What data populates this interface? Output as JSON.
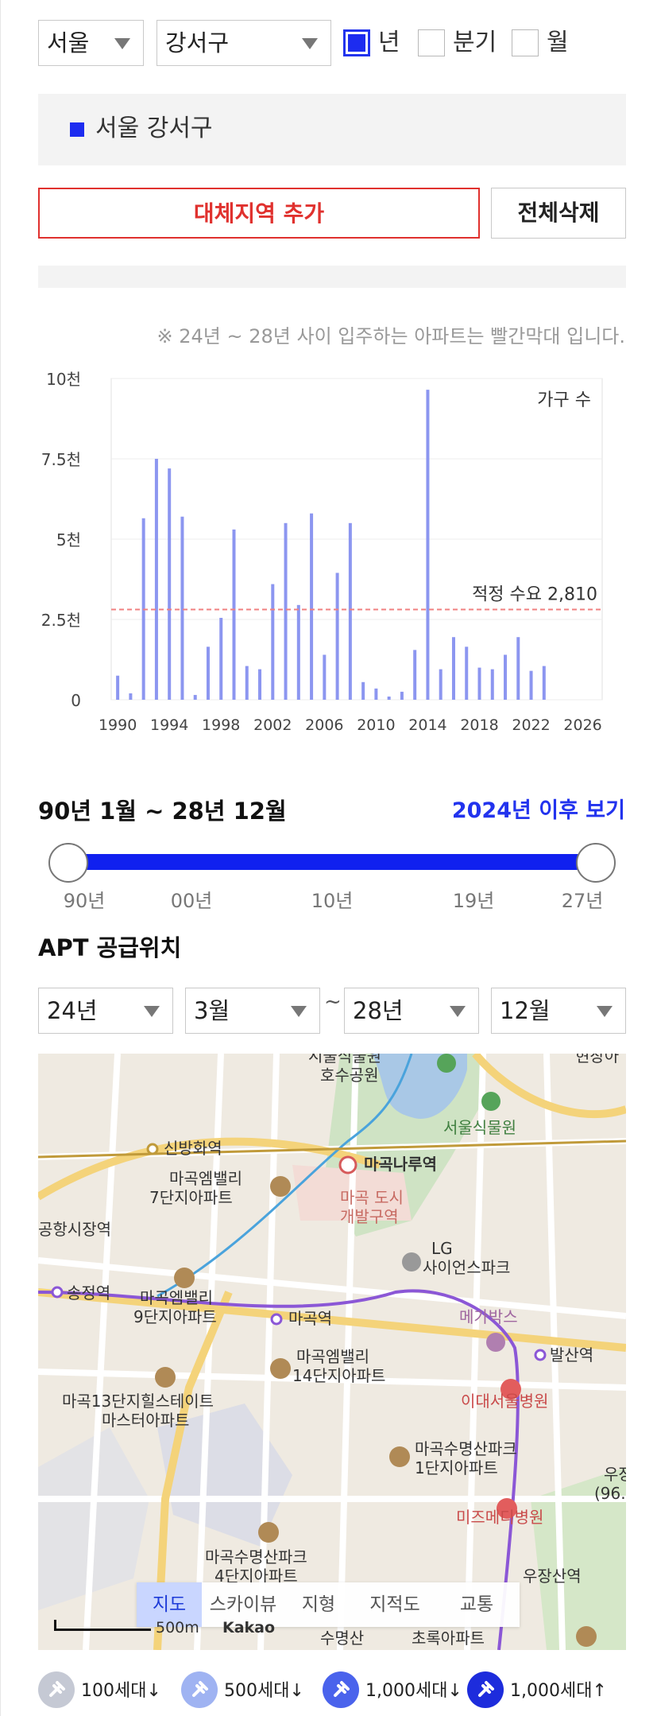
{
  "filters": {
    "city": "서울",
    "district": "강서구",
    "period_options": [
      {
        "label": "년",
        "checked": true
      },
      {
        "label": "분기",
        "checked": false
      },
      {
        "label": "월",
        "checked": false
      }
    ]
  },
  "region": {
    "label": "서울 강서구",
    "color": "#1d2cf0"
  },
  "buttons": {
    "add_region": "대체지역 추가",
    "delete_all": "전체삭제"
  },
  "note": "※ 24년 ~ 28년 사이 입주하는 아파트는 빨간막대 입니다.",
  "chart_data": {
    "type": "bar",
    "legend": "가구 수",
    "y_ticks": [
      "10천",
      "7.5천",
      "5천",
      "2.5천",
      "0"
    ],
    "x_ticks": [
      "1990",
      "1994",
      "1998",
      "2002",
      "2006",
      "2010",
      "2014",
      "2018",
      "2022",
      "2026"
    ],
    "ylim": [
      0,
      10000
    ],
    "xlim": [
      1989.5,
      2027.5
    ],
    "bar_color": "#8c96f0",
    "reference_line": {
      "label": "적정 수요 2,810",
      "value": 2810,
      "color": "#f08080"
    },
    "categories": [
      1990,
      1991,
      1992,
      1993,
      1994,
      1995,
      1996,
      1997,
      1998,
      1999,
      2000,
      2001,
      2002,
      2003,
      2004,
      2005,
      2006,
      2007,
      2008,
      2009,
      2010,
      2011,
      2012,
      2013,
      2014,
      2015,
      2016,
      2017,
      2018,
      2019,
      2020,
      2021,
      2022,
      2023
    ],
    "values": [
      750,
      200,
      5650,
      7500,
      7200,
      5700,
      150,
      1650,
      2550,
      5300,
      1050,
      950,
      3600,
      5500,
      2950,
      5800,
      1400,
      3950,
      5500,
      550,
      350,
      100,
      250,
      1550,
      9650,
      950,
      1950,
      1650,
      1000,
      950,
      1400,
      1950,
      900,
      1050
    ]
  },
  "period": {
    "range_label": "90년 1월 ~ 28년 12월",
    "after_link": "2024년 이후 보기"
  },
  "slider": {
    "ticks": [
      "90년",
      "00년",
      "10년",
      "19년",
      "27년"
    ],
    "min_fraction": 0,
    "max_fraction": 1,
    "track_color": "#1020ef"
  },
  "supply": {
    "title": "APT 공급위치",
    "from_year": "24년",
    "from_month": "3월",
    "separator": "~",
    "to_year": "28년",
    "to_month": "12월"
  },
  "map": {
    "labels": {
      "l1": "시울식물원",
      "l2": "호수공원",
      "l3": "서울식물원",
      "l4": "신방화역",
      "l5": "마곡나루역",
      "l6": "마곡엠밸리",
      "l7": "7단지아파트",
      "l8": "마곡 도시",
      "l9": "개발구역",
      "l10": "공항시장역",
      "l11": "LG",
      "l12": "사이언스파크",
      "l13": "송정역",
      "l14": "마곡엠밸리",
      "l15": "9단지아파트",
      "l16": "마곡역",
      "l17": "메가박스",
      "l18": "발산역",
      "l19": "마곡엠밸리",
      "l20": "14단지아파트",
      "l21": "이대서울병원",
      "l22": "마곡13단지힐스테이트",
      "l23": "마스터아파트",
      "l24": "마곡수명산파크",
      "l25": "1단지아파트",
      "l26": "우장",
      "l27": "(96.",
      "l28": "미즈메디병원",
      "l29": "마곡수명산파크",
      "l30": "4단지아파트",
      "l31": "우장산역",
      "l32": "수명산",
      "l33": "초록아파트",
      "l34": "현장아"
    },
    "tabs": [
      "지도",
      "스카이뷰",
      "지형",
      "지적도",
      "교통"
    ],
    "active_tab": "지도",
    "scale": "500m",
    "brand": "Kakao"
  },
  "legend": [
    {
      "label": "100세대↓",
      "color": "#c5c9d4",
      "icon": "pin-icon"
    },
    {
      "label": "500세대↓",
      "color": "#9fb3f2",
      "icon": "pin-icon"
    },
    {
      "label": "1,000세대↓",
      "color": "#4a63ec",
      "icon": "pin-icon"
    },
    {
      "label": "1,000세대↑",
      "color": "#1d2cdc",
      "icon": "pin-icon"
    }
  ]
}
